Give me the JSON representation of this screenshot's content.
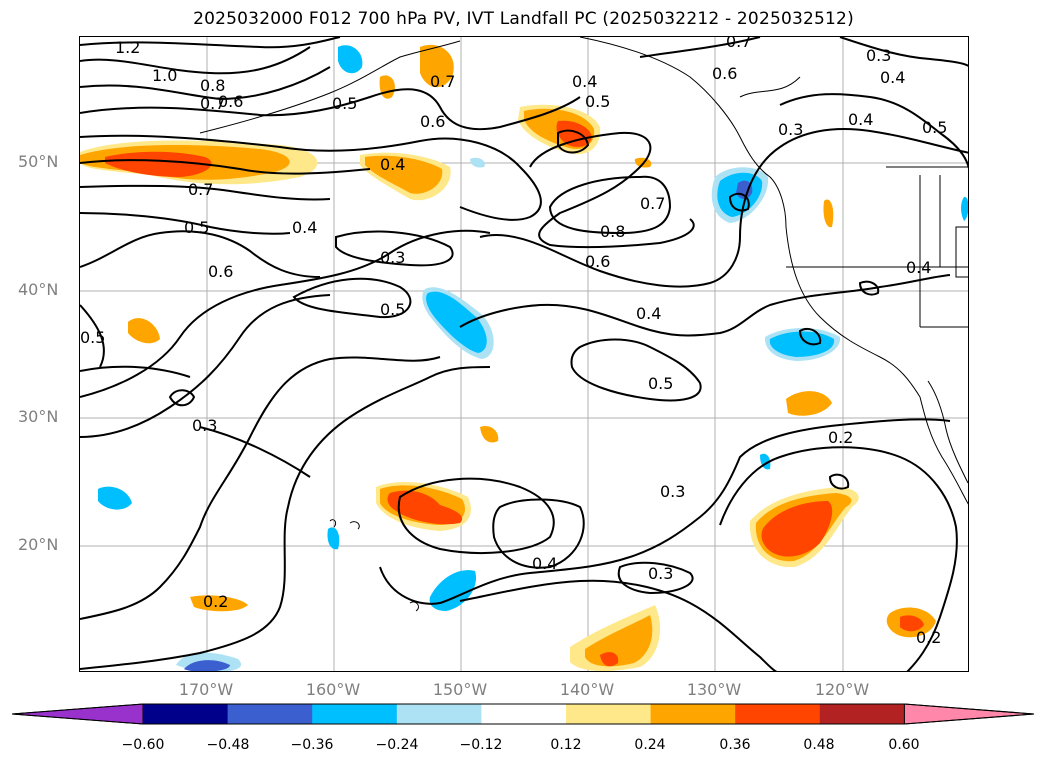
{
  "title": "2025032000 F012 700 hPa PV, IVT Landfall PC (2025032212 - 2025032512)",
  "lat_labels": [
    "50°N",
    "40°N",
    "30°N",
    "20°N"
  ],
  "lon_labels": [
    "170°W",
    "160°W",
    "150°W",
    "140°W",
    "130°W",
    "120°W"
  ],
  "colorbar": {
    "ticks": [
      "−0.60",
      "−0.48",
      "−0.36",
      "−0.24",
      "−0.12",
      "0.12",
      "0.24",
      "0.36",
      "0.48",
      "0.60"
    ],
    "colors": [
      "#9932cc",
      "#00008b",
      "#3b5fcf",
      "#00bfff",
      "#ade2f5",
      "#ffffff",
      "#ffe88a",
      "#ffa500",
      "#ff4500",
      "#b22222",
      "#ff88aa"
    ]
  },
  "contour_labels": [
    "1.2",
    "1.0",
    "0.8",
    "0.7",
    "0.6",
    "0.5",
    "0.4",
    "0.3",
    "0.2"
  ],
  "map": {
    "lon_range": [
      -180,
      -110
    ],
    "lat_range": [
      10,
      60
    ],
    "gridlines": true
  }
}
